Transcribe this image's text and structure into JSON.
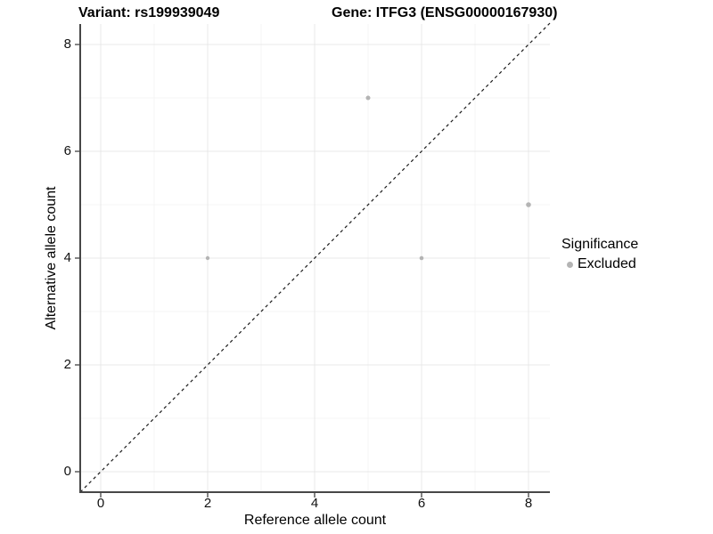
{
  "chart_data": {
    "type": "scatter",
    "title_left": "Variant: rs199939049",
    "title_right": "Gene: ITFG3 (ENSG00000167930)",
    "xlabel": "Reference allele count",
    "ylabel": "Alternative allele count",
    "xlim": [
      -0.4,
      8.45
    ],
    "ylim": [
      -0.4,
      8.45
    ],
    "xticks": [
      0,
      2,
      4,
      6,
      8
    ],
    "yticks": [
      0,
      2,
      4,
      6,
      8
    ],
    "x_minor_gridlines": [
      1,
      3,
      5,
      7
    ],
    "y_minor_gridlines": [
      1,
      3,
      5,
      7
    ],
    "grid": true,
    "legend_position": "right",
    "identity_line": {
      "equation": "y = x",
      "style": "dashed",
      "color": "#1a1a1a"
    },
    "series": [
      {
        "name": "Excluded",
        "color": "#b4b4b4",
        "points": [
          {
            "x": 2,
            "y": 4,
            "radius_px": 2.2
          },
          {
            "x": 5,
            "y": 7,
            "radius_px": 2.5
          },
          {
            "x": 6,
            "y": 4,
            "radius_px": 2.3
          },
          {
            "x": 8,
            "y": 5,
            "radius_px": 2.8
          }
        ]
      }
    ],
    "legend": {
      "title": "Significance",
      "items": [
        {
          "label": "Excluded",
          "color": "#b4b4b4",
          "marker": "dot"
        }
      ]
    },
    "colors": {
      "background": "#ffffff",
      "axis_line": "#474747",
      "tick_mark": "#333333",
      "grid_major": "#e9e9e9",
      "grid_minor": "#f4f4f4",
      "text": "#000000"
    }
  }
}
